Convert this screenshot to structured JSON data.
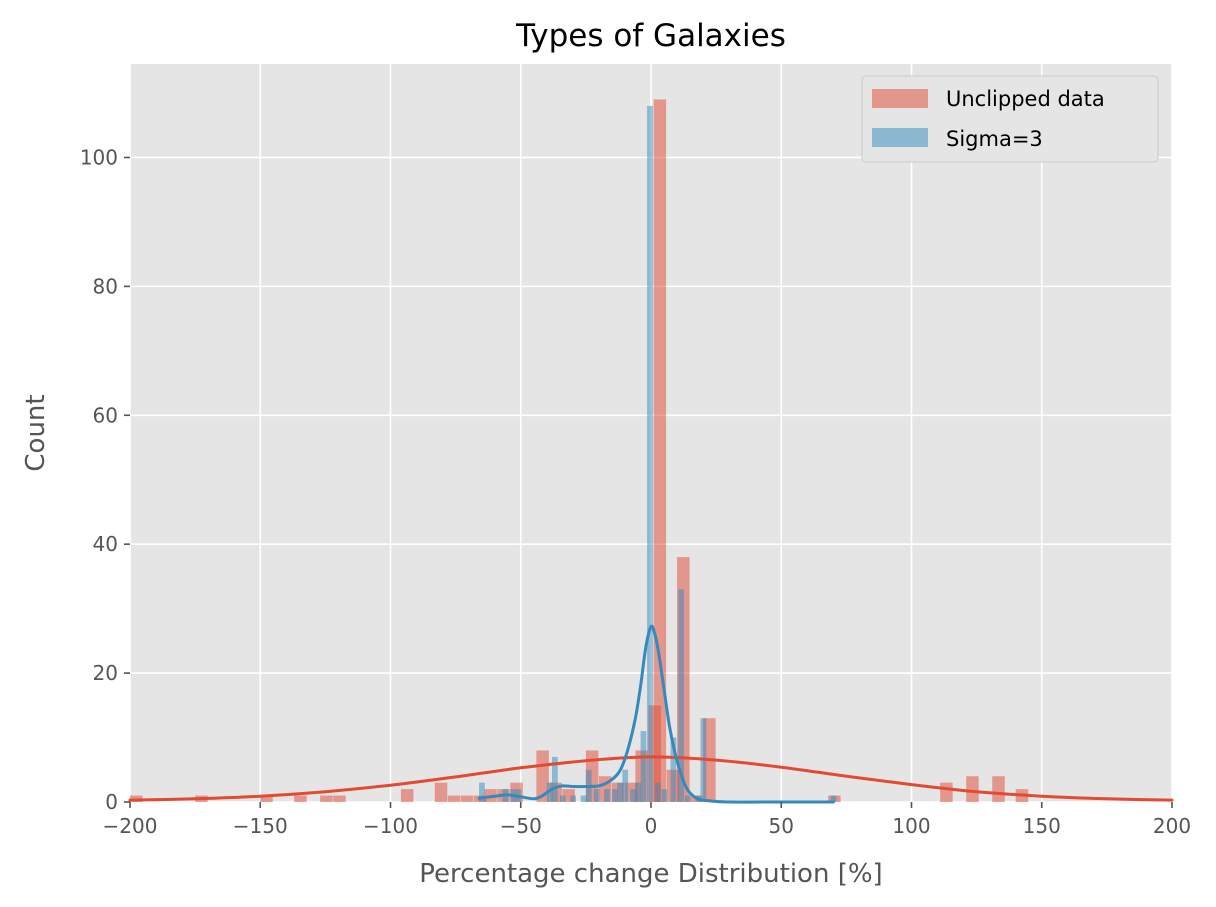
{
  "chart_data": {
    "type": "bar",
    "title": "Types of Galaxies",
    "xlabel": "Percentage change Distribution [%]",
    "ylabel": "Count",
    "xlim": [
      -200,
      200
    ],
    "ylim": [
      0,
      114.5
    ],
    "xticks": [
      -200,
      -150,
      -100,
      -50,
      0,
      50,
      100,
      150,
      200
    ],
    "xtick_labels": [
      "−200",
      "−150",
      "−100",
      "−50",
      "0",
      "50",
      "100",
      "150",
      "200"
    ],
    "yticks": [
      0,
      20,
      40,
      60,
      80,
      100
    ],
    "ytick_labels": [
      "0",
      "20",
      "40",
      "60",
      "80",
      "100"
    ],
    "grid": true,
    "legend_position": "top-right",
    "colors": {
      "unclipped": "#E24A33",
      "sigma": "#348ABD",
      "background": "#E5E5E5",
      "grid": "#FFFFFF"
    },
    "series": [
      {
        "name": "Unclipped data",
        "bin_width": 4.8,
        "bins": [
          [
            -200,
            1
          ],
          [
            -175,
            1
          ],
          [
            -150,
            1
          ],
          [
            -137,
            1
          ],
          [
            -127,
            1
          ],
          [
            -122,
            1
          ],
          [
            -96,
            2
          ],
          [
            -83,
            3
          ],
          [
            -78,
            1
          ],
          [
            -73,
            1
          ],
          [
            -68,
            1
          ],
          [
            -64,
            2
          ],
          [
            -59,
            2
          ],
          [
            -54,
            3
          ],
          [
            -44,
            8
          ],
          [
            -39,
            3
          ],
          [
            -34,
            2
          ],
          [
            -25,
            8
          ],
          [
            -20,
            4
          ],
          [
            -15,
            3
          ],
          [
            -10,
            3
          ],
          [
            -6,
            8
          ],
          [
            -1,
            15
          ],
          [
            1,
            109
          ],
          [
            6,
            5
          ],
          [
            10,
            38
          ],
          [
            15,
            1
          ],
          [
            20,
            13
          ],
          [
            68,
            1
          ],
          [
            111,
            3
          ],
          [
            121,
            4
          ],
          [
            131,
            4
          ],
          [
            140,
            2
          ]
        ],
        "kde": [
          [
            -200,
            0.3
          ],
          [
            -175,
            0.5
          ],
          [
            -150,
            0.9
          ],
          [
            -125,
            1.6
          ],
          [
            -100,
            2.6
          ],
          [
            -75,
            3.9
          ],
          [
            -50,
            5.3
          ],
          [
            -25,
            6.4
          ],
          [
            0,
            7.0
          ],
          [
            25,
            6.5
          ],
          [
            50,
            5.4
          ],
          [
            75,
            4.0
          ],
          [
            100,
            2.7
          ],
          [
            125,
            1.6
          ],
          [
            150,
            0.9
          ],
          [
            175,
            0.5
          ],
          [
            200,
            0.3
          ]
        ]
      },
      {
        "name": "Sigma=3",
        "bin_width": 2.2,
        "bins": [
          [
            -66,
            3
          ],
          [
            -57,
            2
          ],
          [
            -54,
            2
          ],
          [
            -52,
            2
          ],
          [
            -40,
            3
          ],
          [
            -38,
            7
          ],
          [
            -35,
            1
          ],
          [
            -31,
            1
          ],
          [
            -27,
            1
          ],
          [
            -25,
            5
          ],
          [
            -22,
            2
          ],
          [
            -18,
            2
          ],
          [
            -15,
            2
          ],
          [
            -13,
            3
          ],
          [
            -11,
            5
          ],
          [
            -8,
            2
          ],
          [
            -6,
            3
          ],
          [
            -4,
            11
          ],
          [
            -1.5,
            108
          ],
          [
            1.5,
            3
          ],
          [
            4,
            2
          ],
          [
            7.5,
            10
          ],
          [
            10.5,
            33
          ],
          [
            13,
            1
          ],
          [
            17,
            1
          ],
          [
            19,
            13
          ],
          [
            69,
            1
          ]
        ],
        "kde": [
          [
            -66,
            0.6
          ],
          [
            -60,
            0.9
          ],
          [
            -55,
            1.1
          ],
          [
            -50,
            0.8
          ],
          [
            -45,
            0.5
          ],
          [
            -42,
            0.9
          ],
          [
            -38,
            2.0
          ],
          [
            -34,
            2.5
          ],
          [
            -30,
            2.4
          ],
          [
            -25,
            2.4
          ],
          [
            -20,
            2.5
          ],
          [
            -16,
            3.2
          ],
          [
            -12,
            4.8
          ],
          [
            -9,
            8.0
          ],
          [
            -6,
            13.0
          ],
          [
            -4,
            18.0
          ],
          [
            -2,
            24.0
          ],
          [
            0,
            27.2
          ],
          [
            1.5,
            26.0
          ],
          [
            3,
            23.0
          ],
          [
            5,
            17.5
          ],
          [
            7,
            12.0
          ],
          [
            9,
            8.0
          ],
          [
            11,
            5.0
          ],
          [
            13,
            2.7
          ],
          [
            15,
            1.4
          ],
          [
            18,
            0.5
          ],
          [
            22,
            0.2
          ],
          [
            30,
            0.0
          ],
          [
            50,
            0.0
          ],
          [
            70,
            0.0
          ]
        ]
      }
    ]
  }
}
